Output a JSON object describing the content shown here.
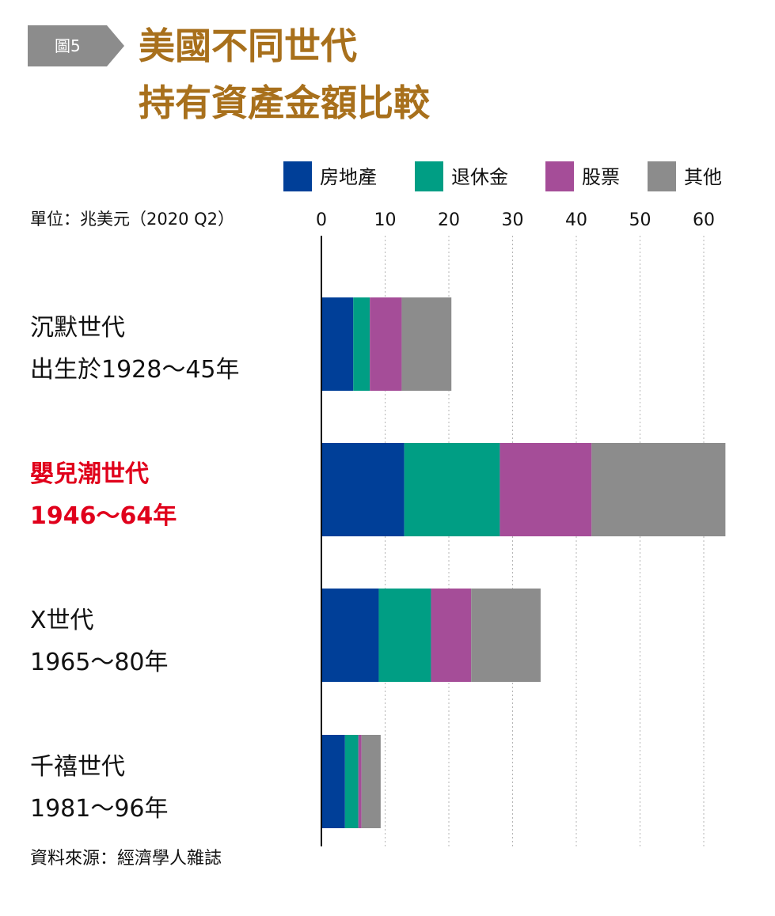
{
  "figure_tag": "圖5",
  "title": [
    "美國不同世代",
    "持有資產金額比較"
  ],
  "unit_label": "單位：兆美元（2020 Q2）",
  "source": "資料來源：經濟學人雜誌",
  "colors": {
    "title": "#a8701c",
    "highlight": "#e0001b",
    "real_estate": "#003f98",
    "pension": "#009e84",
    "stocks": "#a54d98",
    "other": "#8c8c8c"
  },
  "generations": [
    {
      "name": "沉默世代",
      "years": "出生於1928～45年",
      "highlight": false
    },
    {
      "name": "嬰兒潮世代",
      "years": "1946～64年",
      "highlight": true
    },
    {
      "name": "X世代",
      "years": "1965～80年",
      "highlight": false
    },
    {
      "name": "千禧世代",
      "years": "1981～96年",
      "highlight": false
    }
  ],
  "chart_data": {
    "type": "bar",
    "orientation": "horizontal",
    "stacked": true,
    "title": "美國不同世代持有資產金額比較",
    "unit": "兆美元（2020 Q2）",
    "categories": [
      "沉默世代",
      "嬰兒潮世代",
      "X世代",
      "千禧世代"
    ],
    "series": [
      {
        "name": "房地產",
        "color": "#003f98",
        "values": [
          5.0,
          13.0,
          9.0,
          3.7
        ]
      },
      {
        "name": "退休金",
        "color": "#009e84",
        "values": [
          2.6,
          15.0,
          8.2,
          2.1
        ]
      },
      {
        "name": "股票",
        "color": "#a54d98",
        "values": [
          5.0,
          14.4,
          6.3,
          0.5
        ]
      },
      {
        "name": "其他",
        "color": "#8c8c8c",
        "values": [
          7.8,
          21.0,
          10.9,
          3.0
        ]
      }
    ],
    "xlim": [
      0,
      64
    ],
    "xticks": [
      0,
      10,
      20,
      30,
      40,
      50,
      60
    ],
    "grid": true,
    "legend": "top-right"
  }
}
